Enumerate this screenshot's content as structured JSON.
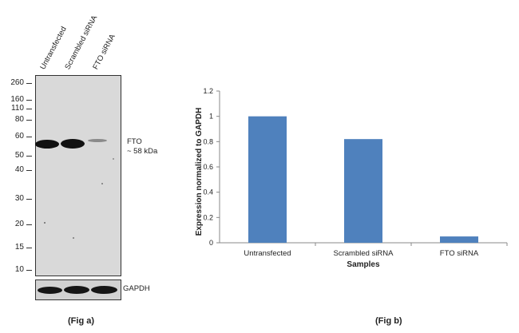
{
  "fig_a": {
    "lanes": [
      "Untransfected",
      "Scrambled siRNA",
      "FTO siRNA"
    ],
    "mw_markers": [
      "260",
      "160",
      "110",
      "80",
      "60",
      "50",
      "40",
      "30",
      "20",
      "15",
      "10"
    ],
    "band_label_line1": "FTO",
    "band_label_line2": "~ 58 kDa",
    "loading_control": "GAPDH",
    "caption": "(Fig a)"
  },
  "fig_b": {
    "caption": "(Fig b)"
  },
  "chart_data": {
    "type": "bar",
    "categories": [
      "Untransfected",
      "Scrambled siRNA",
      "FTO siRNA"
    ],
    "values": [
      1.0,
      0.82,
      0.05
    ],
    "ylabel": "Expression normalized to GAPDH",
    "xlabel": "Samples",
    "ylim": [
      0,
      1.2
    ],
    "yticks": [
      "0",
      "0.2",
      "0.4",
      "0.6",
      "0.8",
      "1",
      "1.2"
    ],
    "bar_color": "#4f81bd",
    "grid": false
  }
}
